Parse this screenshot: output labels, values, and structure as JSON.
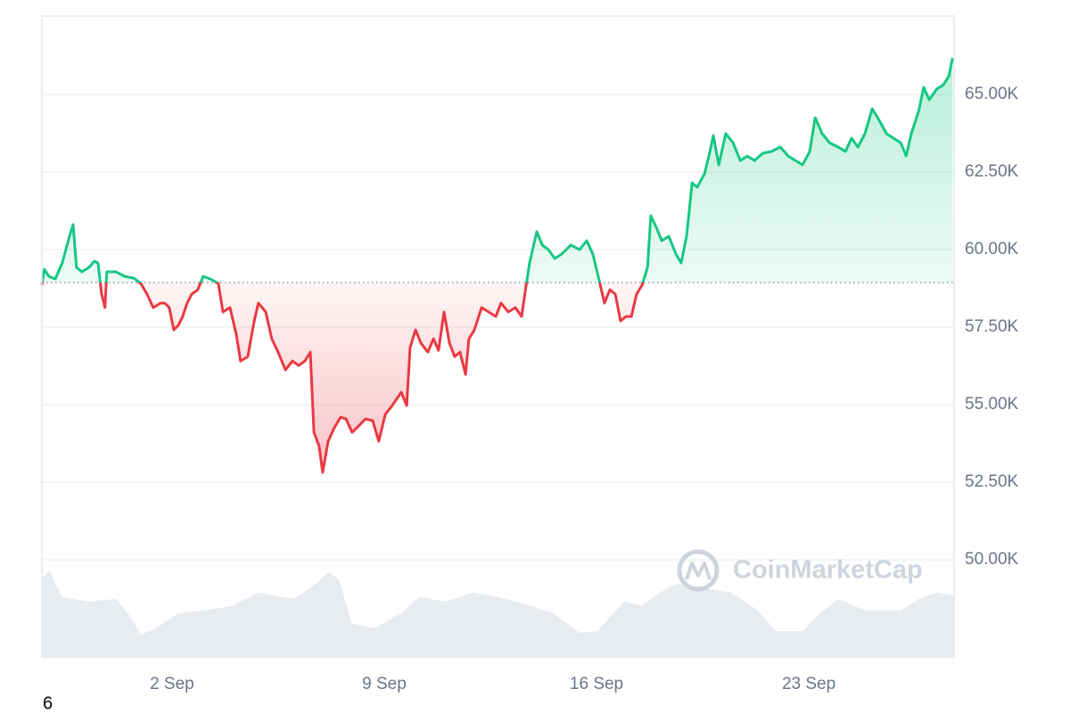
{
  "chart_data": {
    "type": "line",
    "x": [
      -2.29,
      -2.21,
      -2.06,
      -1.85,
      -1.62,
      -1.38,
      -1.26,
      -1.15,
      -0.97,
      -0.74,
      -0.56,
      -0.44,
      -0.32,
      -0.21,
      -0.15,
      0.15,
      0.44,
      0.74,
      0.97,
      1.18,
      1.38,
      1.62,
      1.76,
      1.91,
      2.06,
      2.21,
      2.35,
      2.5,
      2.65,
      2.85,
      3.03,
      3.26,
      3.53,
      3.68,
      3.91,
      4.12,
      4.26,
      4.5,
      4.71,
      4.85,
      5.09,
      5.29,
      5.5,
      5.74,
      5.97,
      6.18,
      6.38,
      6.56,
      6.68,
      6.85,
      6.97,
      7.15,
      7.35,
      7.56,
      7.74,
      7.94,
      8.15,
      8.38,
      8.62,
      8.82,
      9.03,
      9.26,
      9.56,
      9.74,
      9.85,
      10.03,
      10.21,
      10.44,
      10.62,
      10.79,
      10.97,
      11.15,
      11.32,
      11.5,
      11.68,
      11.79,
      11.97,
      12.21,
      12.44,
      12.68,
      12.85,
      13.09,
      13.32,
      13.53,
      13.68,
      13.79,
      14.03,
      14.21,
      14.41,
      14.62,
      14.85,
      15.15,
      15.44,
      15.68,
      15.88,
      16.09,
      16.26,
      16.44,
      16.62,
      16.79,
      16.97,
      17.15,
      17.32,
      17.5,
      17.68,
      17.79,
      17.97,
      18.15,
      18.38,
      18.62,
      18.79,
      18.97,
      19.15,
      19.32,
      19.56,
      19.74,
      19.85,
      20.03,
      20.26,
      20.5,
      20.74,
      20.97,
      21.21,
      21.47,
      21.76,
      22.06,
      22.32,
      22.56,
      22.79,
      23.03,
      23.21,
      23.44,
      23.68,
      23.97,
      24.21,
      24.41,
      24.62,
      24.85,
      25.09,
      25.32,
      25.56,
      25.79,
      26.03,
      26.21,
      26.38,
      26.62,
      26.79,
      26.97,
      27.21,
      27.44,
      27.62,
      27.74
    ],
    "values": [
      58851,
      59368,
      59138,
      59052,
      59569,
      60431,
      60805,
      59425,
      59282,
      59425,
      59626,
      59569,
      58563,
      58132,
      59282,
      59282,
      59138,
      59080,
      58908,
      58563,
      58132,
      58276,
      58276,
      58132,
      57414,
      57557,
      57845,
      58276,
      58563,
      58707,
      59138,
      59052,
      58908,
      57989,
      58132,
      57270,
      56408,
      56552,
      57701,
      58276,
      57989,
      57126,
      56695,
      56121,
      56408,
      56264,
      56408,
      56695,
      54109,
      53678,
      52816,
      53822,
      54253,
      54598,
      54540,
      54109,
      54310,
      54540,
      54483,
      53822,
      54684,
      54971,
      55402,
      54971,
      56839,
      57414,
      56983,
      56695,
      57126,
      56753,
      57989,
      56983,
      56552,
      56695,
      55977,
      57126,
      57414,
      58132,
      57989,
      57845,
      58276,
      57989,
      58132,
      57845,
      58851,
      59569,
      60575,
      60144,
      60000,
      59713,
      59856,
      60144,
      60000,
      60287,
      59856,
      58994,
      58276,
      58707,
      58563,
      57701,
      57845,
      57845,
      58563,
      58851,
      59425,
      61092,
      60718,
      60287,
      60431,
      59856,
      59569,
      60431,
      62155,
      62011,
      62443,
      63161,
      63678,
      62730,
      63736,
      63448,
      62873,
      63017,
      62873,
      63103,
      63161,
      63305,
      63017,
      62873,
      62730,
      63161,
      64253,
      63736,
      63448,
      63305,
      63161,
      63592,
      63305,
      63736,
      64540,
      64167,
      63736,
      63592,
      63448,
      63017,
      63736,
      64454,
      65230,
      64828,
      65172,
      65316,
      65603,
      66178
    ],
    "baseline": 58940,
    "up_color": "#16c784",
    "down_color": "#ea3943",
    "xlim": [
      -2.29,
      27.79
    ],
    "xticks": [
      {
        "value": 2,
        "label": "2 Sep"
      },
      {
        "value": 9,
        "label": "9 Sep"
      },
      {
        "value": 16,
        "label": "16 Sep"
      },
      {
        "value": 23,
        "label": "23 Sep"
      }
    ],
    "ylim": [
      46870,
      67530
    ],
    "yticks": [
      {
        "value": 50000,
        "label": "50.00K"
      },
      {
        "value": 52500,
        "label": "52.50K"
      },
      {
        "value": 55000,
        "label": "55.00K"
      },
      {
        "value": 57500,
        "label": "57.50K"
      },
      {
        "value": 60000,
        "label": "60.00K"
      },
      {
        "value": 62500,
        "label": "62.50K"
      },
      {
        "value": 65000,
        "label": "65.00K"
      }
    ],
    "grid": true,
    "volume": {
      "color": "#e8ebef",
      "ylim": [
        0,
        100
      ],
      "x": [
        -2.29,
        -2.06,
        -1.62,
        -0.74,
        0.15,
        0.59,
        0.97,
        1.47,
        2.21,
        3.09,
        3.97,
        4.85,
        6.03,
        6.76,
        7.15,
        7.5,
        7.94,
        8.68,
        9.56,
        10.15,
        11.03,
        11.91,
        12.79,
        13.68,
        14.56,
        15.44,
        16.03,
        16.91,
        17.5,
        18.09,
        18.68,
        19.56,
        20.44,
        21.32,
        21.91,
        22.79,
        23.38,
        23.97,
        24.85,
        26.03,
        26.62,
        27.21,
        27.79
      ],
      "values": [
        63.5,
        70.8,
        48.9,
        45.3,
        47.4,
        34.3,
        18.2,
        23.4,
        35.8,
        38.0,
        41.6,
        52.6,
        47.4,
        59.9,
        69.3,
        63.5,
        27.0,
        23.4,
        35.8,
        48.9,
        45.3,
        52.6,
        48.9,
        43.1,
        35.8,
        19.7,
        21.2,
        45.3,
        41.6,
        52.6,
        59.9,
        56.2,
        52.6,
        38.0,
        21.2,
        21.2,
        35.8,
        47.4,
        38.0,
        38.0,
        47.4,
        52.6,
        50.4
      ]
    },
    "watermark": "CoinMarketCap"
  },
  "page_label": "6"
}
